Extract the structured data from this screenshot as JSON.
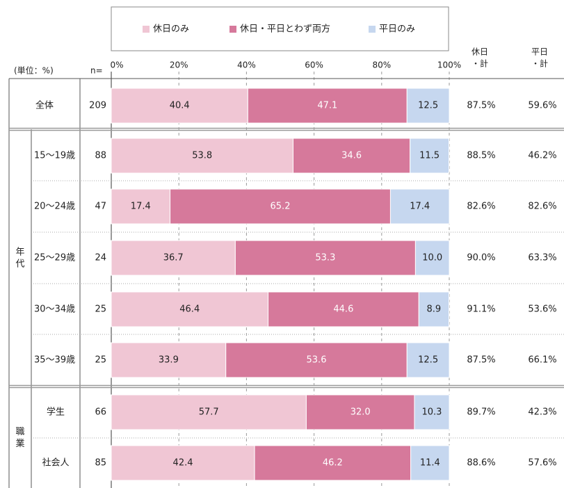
{
  "chart_data": {
    "type": "stacked-bar-h",
    "unit_label": "(単位：%)",
    "n_label": "n=",
    "categories": [
      "全体",
      "15～19歳",
      "20～24歳",
      "25～29歳",
      "30～34歳",
      "35～39歳",
      "学生",
      "社会人"
    ],
    "n": [
      "209",
      "88",
      "47",
      "24",
      "25",
      "25",
      "66",
      "85"
    ],
    "groups": [
      {
        "label": [
          "年",
          "代"
        ],
        "rows": [
          1,
          2,
          3,
          4,
          5
        ]
      },
      {
        "label": [
          "職",
          "業"
        ],
        "rows": [
          6,
          7
        ]
      }
    ],
    "series": [
      {
        "name": "休日のみ",
        "color": "#f0c6d4",
        "values": [
          40.4,
          53.8,
          17.4,
          36.7,
          46.4,
          33.9,
          57.7,
          42.4
        ],
        "value_labels": [
          "40.4",
          "53.8",
          "17.4",
          "36.7",
          "46.4",
          "33.9",
          "57.7",
          "42.4"
        ]
      },
      {
        "name": "休日・平日とわず両方",
        "color": "#d6799b",
        "values": [
          47.1,
          34.6,
          65.2,
          53.3,
          44.6,
          53.6,
          32.0,
          46.2
        ],
        "value_labels": [
          "47.1",
          "34.6",
          "65.2",
          "53.3",
          "44.6",
          "53.6",
          "32.0",
          "46.2"
        ]
      },
      {
        "name": "平日のみ",
        "color": "#c6d7ef",
        "values": [
          12.5,
          11.5,
          17.4,
          10.0,
          8.9,
          12.5,
          10.3,
          11.4
        ],
        "value_labels": [
          "12.5",
          "11.5",
          "17.4",
          "10.0",
          "8.9",
          "12.5",
          "10.3",
          "11.4"
        ]
      }
    ],
    "xlim": [
      0,
      100
    ],
    "xticks": [
      {
        "value": 0,
        "label": "0%"
      },
      {
        "value": 20,
        "label": "20%"
      },
      {
        "value": 40,
        "label": "40%"
      },
      {
        "value": 60,
        "label": "60%"
      },
      {
        "value": 80,
        "label": "80%"
      },
      {
        "value": 100,
        "label": "100%"
      }
    ],
    "grid": true,
    "legend": "top",
    "columns": [
      {
        "header": [
          "休日",
          "・計"
        ],
        "cells": [
          "87.5%",
          "88.5%",
          "82.6%",
          "90.0%",
          "91.1%",
          "87.5%",
          "89.7%",
          "88.6%"
        ]
      },
      {
        "header": [
          "平日",
          "・計"
        ],
        "cells": [
          "59.6%",
          "46.2%",
          "82.6%",
          "63.3%",
          "53.6%",
          "66.1%",
          "42.3%",
          "57.6%"
        ]
      }
    ]
  }
}
